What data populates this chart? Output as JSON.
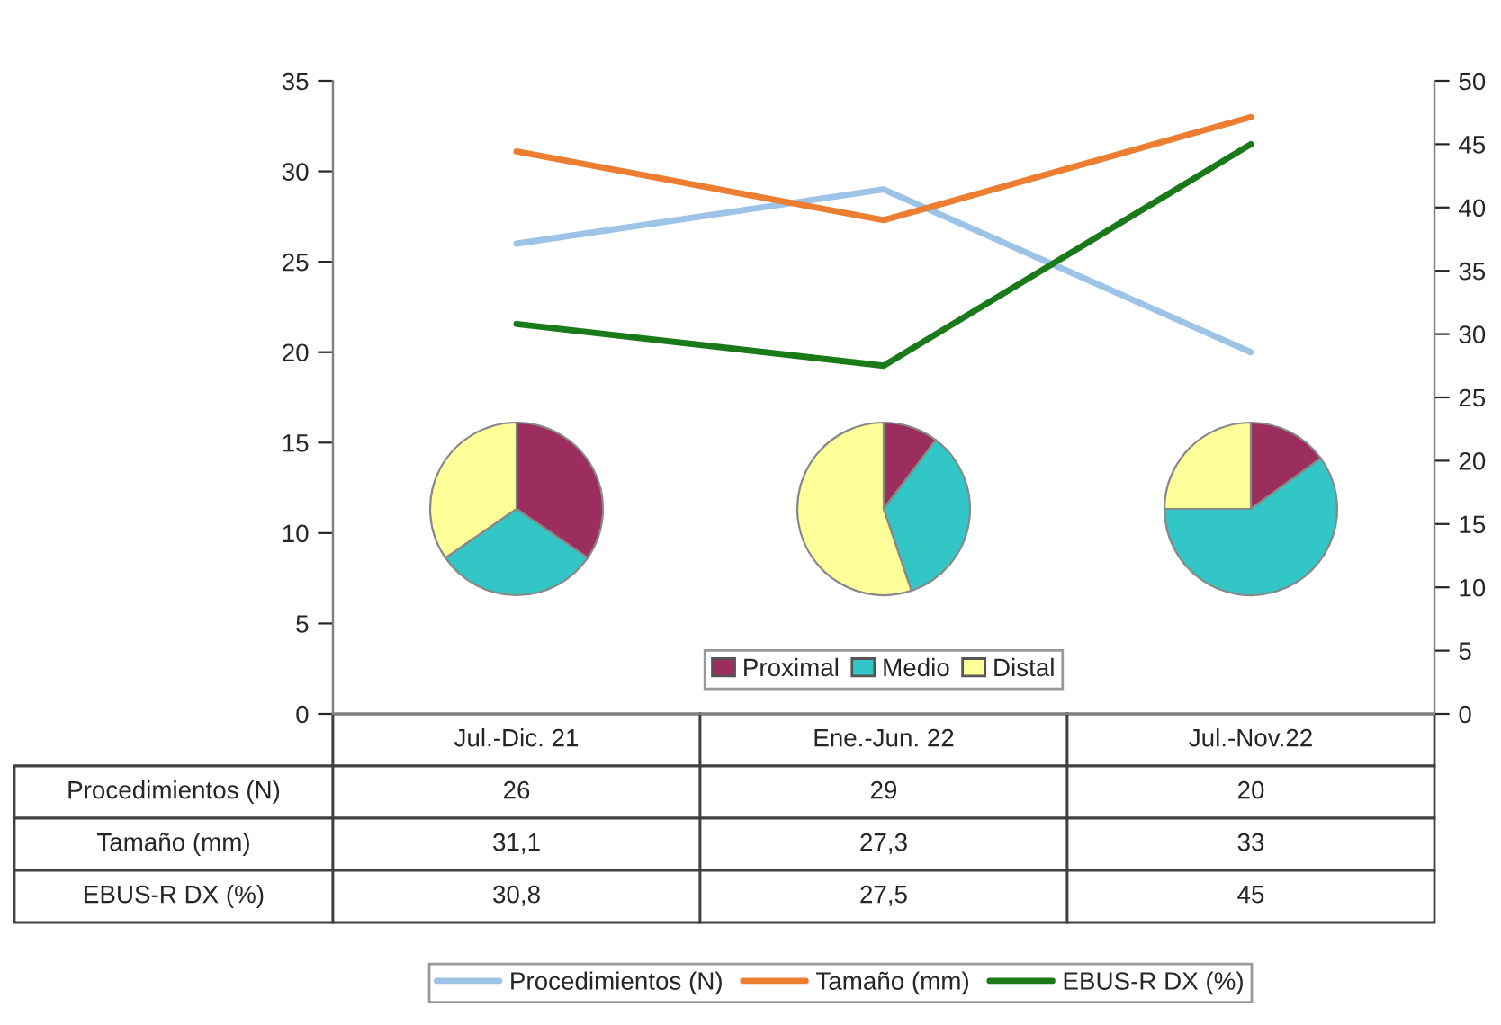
{
  "chart_data": [
    {
      "type": "line",
      "categories": [
        "Jul.-Dic. 21",
        "Ene.-Jun. 22",
        "Jul.-Nov.22"
      ],
      "series": [
        {
          "name": "Procedimientos (N)",
          "color": "#9dc3e6",
          "values": [
            26,
            29,
            20
          ],
          "value_labels": [
            "26",
            "29",
            "20"
          ]
        },
        {
          "name": "Tamaño (mm)",
          "color": "#ed7d31",
          "values": [
            31.1,
            27.3,
            33
          ],
          "value_labels": [
            "31,1",
            "27,3",
            "33"
          ]
        },
        {
          "name": "EBUS-R DX (%)",
          "color": "#1a7a1a",
          "axis": "y2",
          "values": [
            30.8,
            27.5,
            45
          ],
          "value_labels": [
            "30,8",
            "27,5",
            "45"
          ]
        }
      ],
      "ylim": [
        0,
        35
      ],
      "yticks": [
        0,
        5,
        10,
        15,
        20,
        25,
        30,
        35
      ],
      "y2lim": [
        0,
        50
      ],
      "y2ticks": [
        0,
        5,
        10,
        15,
        20,
        25,
        30,
        35,
        40,
        45,
        50
      ],
      "grid": false,
      "legend": "bottom",
      "marker": "none",
      "line_style": "solid"
    },
    {
      "type": "pie",
      "categories": [
        "Proximal",
        "Medio",
        "Distal"
      ],
      "values": [
        34.6,
        30.8,
        34.6
      ],
      "colors": [
        "#9b2d5f",
        "#33c6c6",
        "#ffff99"
      ],
      "legend": "bottom"
    },
    {
      "type": "pie",
      "values": [
        10.3,
        34.5,
        55.2
      ],
      "colors": [
        "#9b2d5f",
        "#33c6c6",
        "#ffff99"
      ]
    },
    {
      "type": "pie",
      "values": [
        15,
        60,
        25
      ],
      "colors": [
        "#9b2d5f",
        "#33c6c6",
        "#ffff99"
      ]
    }
  ]
}
